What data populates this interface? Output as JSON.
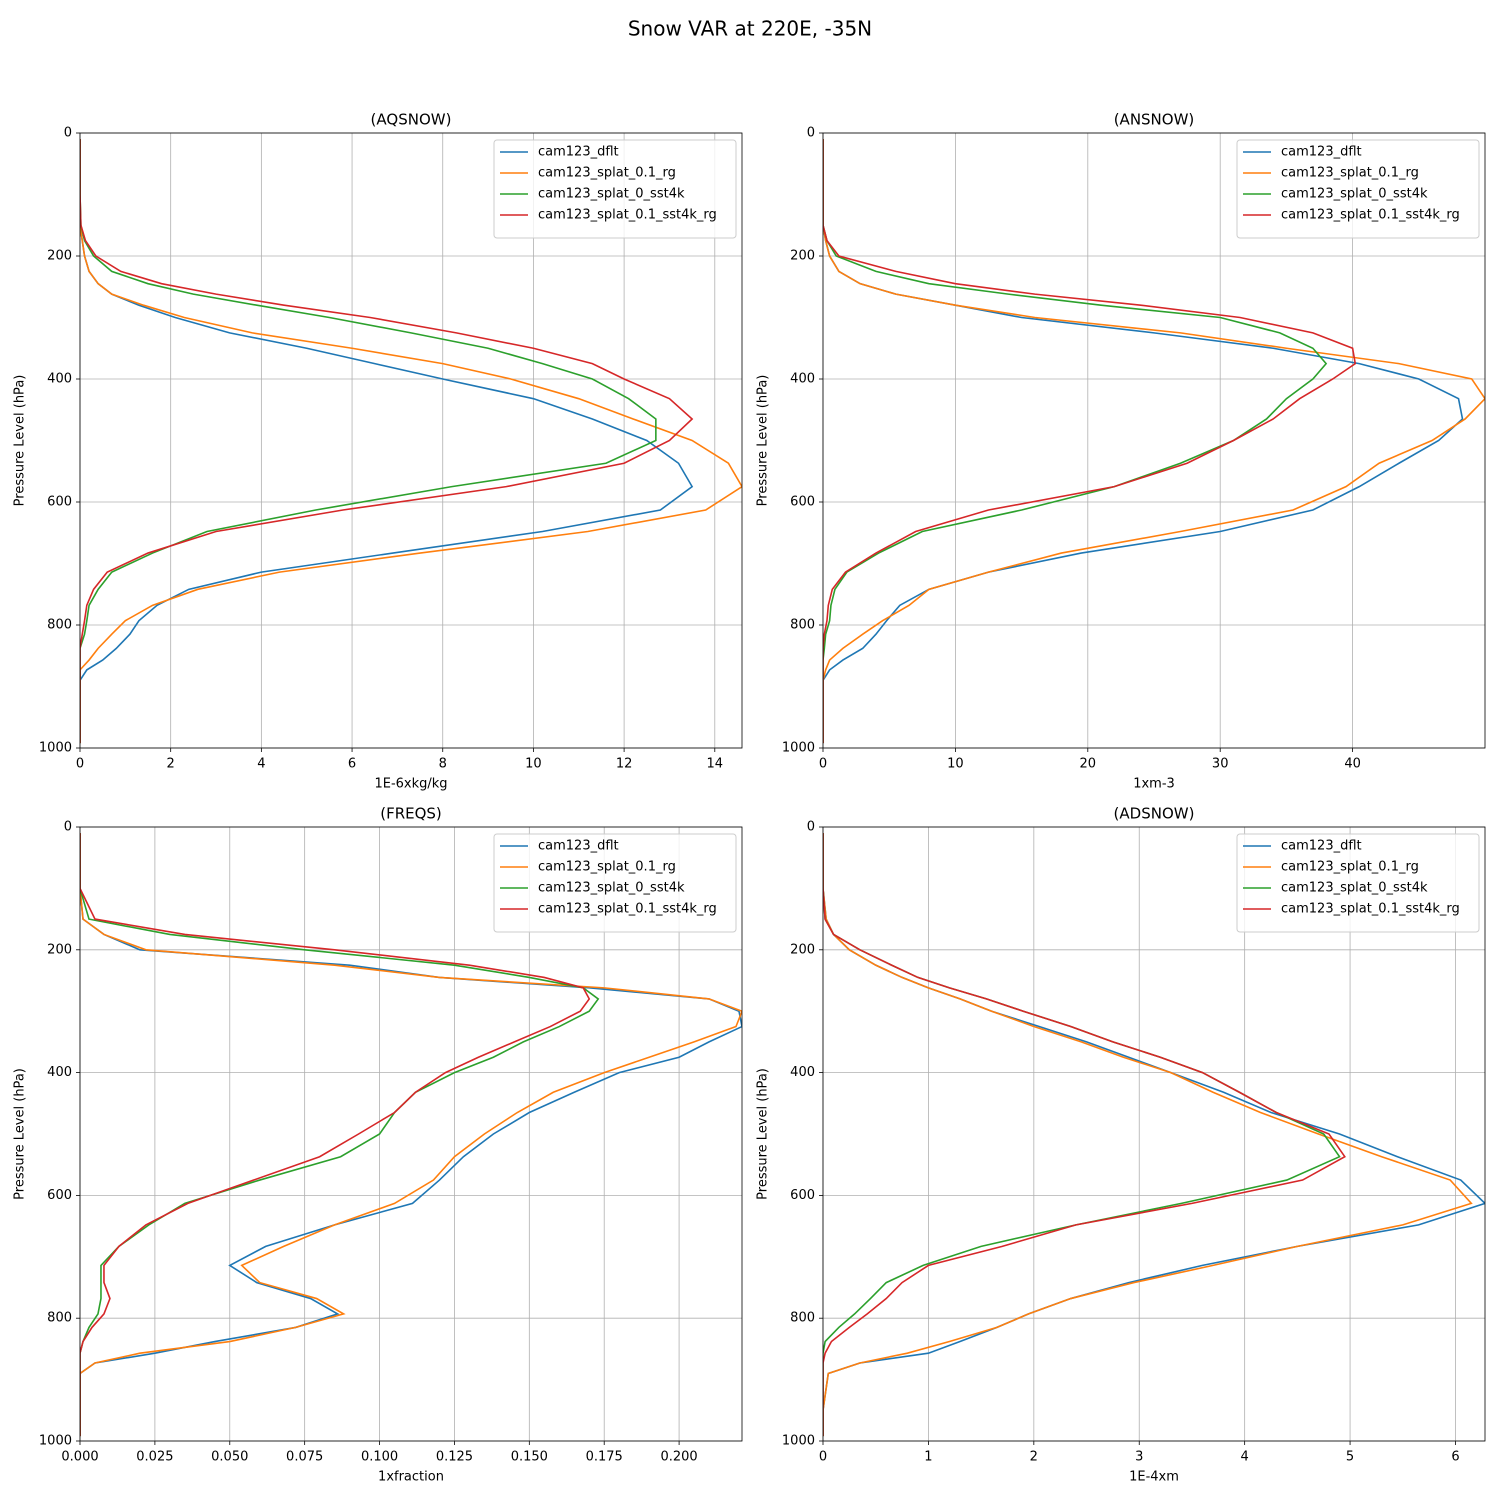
{
  "title": "Snow VAR at 220E, -35N",
  "chart_data": [
    {
      "type": "line",
      "title": "(AQSNOW)",
      "xlabel": "1E-6xkg/kg",
      "ylabel": "Pressure Level (hPa)",
      "y": [
        10,
        100,
        150,
        175,
        200,
        225,
        245,
        262,
        280,
        300,
        325,
        350,
        375,
        400,
        432,
        465,
        500,
        537,
        575,
        613,
        648,
        683,
        714,
        742,
        768,
        793,
        815,
        838,
        857,
        873,
        890,
        950,
        992
      ],
      "series": [
        {
          "name": "cam123_dflt",
          "color": "#1f77b4",
          "values": [
            0,
            0,
            0,
            0.05,
            0.1,
            0.2,
            0.4,
            0.7,
            1.3,
            2.1,
            3.3,
            5,
            6.5,
            8,
            10,
            11.3,
            12.5,
            13.2,
            13.5,
            12.8,
            10.2,
            6.9,
            4,
            2.4,
            1.7,
            1.3,
            1.1,
            0.8,
            0.5,
            0.15,
            0,
            0,
            0
          ]
        },
        {
          "name": "cam123_splat_0.1_rg",
          "color": "#ff7f0e",
          "values": [
            0,
            0,
            0,
            0.05,
            0.1,
            0.2,
            0.4,
            0.7,
            1.4,
            2.3,
            3.8,
            6,
            8,
            9.5,
            11,
            12.2,
            13.5,
            14.3,
            14.6,
            13.8,
            11.2,
            7.5,
            4.4,
            2.6,
            1.6,
            1,
            0.7,
            0.4,
            0.2,
            0,
            0,
            0,
            0
          ]
        },
        {
          "name": "cam123_splat_0_sst4k",
          "color": "#2ca02c",
          "values": [
            0,
            0,
            0.02,
            0.1,
            0.3,
            0.7,
            1.5,
            2.5,
            3.9,
            5.5,
            7.3,
            9,
            10.2,
            11.3,
            12.1,
            12.7,
            12.7,
            11.6,
            8.2,
            5.2,
            2.8,
            1.6,
            0.7,
            0.4,
            0.2,
            0.15,
            0.1,
            0,
            0,
            0,
            0,
            0,
            0
          ]
        },
        {
          "name": "cam123_splat_0.1_sst4k_rg",
          "color": "#d62728",
          "values": [
            0,
            0,
            0.02,
            0.12,
            0.35,
            0.9,
            1.8,
            3,
            4.5,
            6.4,
            8.3,
            10,
            11.3,
            12,
            13,
            13.5,
            13,
            12,
            9.4,
            5.8,
            3,
            1.5,
            0.6,
            0.3,
            0.15,
            0.1,
            0.05,
            0,
            0,
            0,
            0,
            0,
            0
          ]
        }
      ],
      "xlim": [
        0,
        14.6
      ],
      "xticks": [
        0,
        2,
        4,
        6,
        8,
        10,
        12,
        14
      ],
      "ylim": [
        1000,
        0
      ],
      "yticks": [
        0,
        200,
        400,
        600,
        800,
        1000
      ],
      "grid": true,
      "legend": "upper right"
    },
    {
      "type": "line",
      "title": "(ANSNOW)",
      "xlabel": "1xm-3",
      "ylabel": "Pressure Level (hPa)",
      "y": [
        10,
        100,
        150,
        175,
        200,
        225,
        245,
        262,
        280,
        300,
        325,
        350,
        375,
        400,
        432,
        465,
        500,
        537,
        575,
        613,
        648,
        683,
        714,
        742,
        768,
        793,
        815,
        838,
        857,
        873,
        890,
        950,
        992
      ],
      "series": [
        {
          "name": "cam123_dflt",
          "color": "#1f77b4",
          "values": [
            0,
            0,
            0,
            0.2,
            0.5,
            1.2,
            2.8,
            5.5,
            10,
            15,
            25,
            34,
            40.5,
            45,
            48,
            48.3,
            46.5,
            43.5,
            40.5,
            37,
            30,
            19.5,
            12.5,
            8,
            5.8,
            4.8,
            4,
            3,
            1.5,
            0.5,
            0,
            0,
            0
          ]
        },
        {
          "name": "cam123_splat_0.1_rg",
          "color": "#ff7f0e",
          "values": [
            0,
            0,
            0,
            0.2,
            0.5,
            1.2,
            2.8,
            5.5,
            10,
            16,
            27,
            35,
            43.5,
            49,
            50,
            48.5,
            46,
            42,
            39.5,
            35.5,
            27,
            18,
            12.5,
            8,
            6.5,
            4.5,
            3,
            1.5,
            0.5,
            0.2,
            0,
            0,
            0
          ]
        },
        {
          "name": "cam123_splat_0_sst4k",
          "color": "#2ca02c",
          "values": [
            0,
            0,
            0,
            0.3,
            1,
            4,
            8,
            14,
            21,
            30,
            34.5,
            37,
            38,
            37,
            35,
            33.5,
            31,
            27,
            22,
            15,
            7.5,
            4.2,
            1.8,
            0.9,
            0.6,
            0.5,
            0.2,
            0.1,
            0,
            0,
            0,
            0,
            0
          ]
        },
        {
          "name": "cam123_splat_0.1_sst4k_rg",
          "color": "#d62728",
          "values": [
            0,
            0,
            0,
            0.3,
            1.2,
            5.5,
            10,
            16,
            24,
            31.5,
            37,
            40,
            40.2,
            38.5,
            36,
            34,
            31,
            27.5,
            22,
            12.5,
            7,
            4,
            1.7,
            0.7,
            0.4,
            0.3,
            0.1,
            0,
            0,
            0,
            0,
            0,
            0
          ]
        }
      ],
      "xlim": [
        0,
        50
      ],
      "xticks": [
        0,
        10,
        20,
        30,
        40
      ],
      "ylim": [
        1000,
        0
      ],
      "yticks": [
        0,
        200,
        400,
        600,
        800,
        1000
      ],
      "grid": true,
      "legend": "upper right"
    },
    {
      "type": "line",
      "title": "(FREQS)",
      "xlabel": "1xfraction",
      "ylabel": "Pressure Level (hPa)",
      "y": [
        10,
        100,
        150,
        175,
        200,
        225,
        245,
        262,
        280,
        300,
        325,
        350,
        375,
        400,
        432,
        465,
        500,
        537,
        575,
        613,
        648,
        683,
        714,
        742,
        768,
        793,
        815,
        838,
        857,
        873,
        890,
        950,
        992
      ],
      "series": [
        {
          "name": "cam123_dflt",
          "color": "#1f77b4",
          "values": [
            0,
            0,
            0.001,
            0.008,
            0.02,
            0.09,
            0.12,
            0.17,
            0.21,
            0.22,
            0.221,
            0.21,
            0.2,
            0.18,
            0.165,
            0.15,
            0.138,
            0.128,
            0.12,
            0.111,
            0.085,
            0.062,
            0.05,
            0.059,
            0.077,
            0.086,
            0.072,
            0.045,
            0.025,
            0.005,
            0,
            0,
            0
          ]
        },
        {
          "name": "cam123_splat_0.1_rg",
          "color": "#ff7f0e",
          "values": [
            0,
            0,
            0.001,
            0.008,
            0.022,
            0.085,
            0.12,
            0.175,
            0.21,
            0.221,
            0.219,
            0.205,
            0.19,
            0.175,
            0.158,
            0.146,
            0.135,
            0.125,
            0.118,
            0.105,
            0.085,
            0.068,
            0.054,
            0.06,
            0.079,
            0.088,
            0.072,
            0.05,
            0.02,
            0.005,
            0,
            0,
            0
          ]
        },
        {
          "name": "cam123_splat_0_sst4k",
          "color": "#2ca02c",
          "values": [
            0,
            0,
            0.003,
            0.03,
            0.075,
            0.125,
            0.15,
            0.168,
            0.173,
            0.17,
            0.16,
            0.148,
            0.138,
            0.125,
            0.112,
            0.105,
            0.1,
            0.087,
            0.06,
            0.035,
            0.023,
            0.013,
            0.007,
            0.007,
            0.007,
            0.006,
            0.003,
            0.001,
            0,
            0,
            0,
            0,
            0
          ]
        },
        {
          "name": "cam123_splat_0.1_sst4k_rg",
          "color": "#d62728",
          "values": [
            0,
            0,
            0.005,
            0.035,
            0.085,
            0.13,
            0.155,
            0.168,
            0.17,
            0.167,
            0.157,
            0.145,
            0.133,
            0.122,
            0.112,
            0.105,
            0.093,
            0.08,
            0.058,
            0.036,
            0.022,
            0.013,
            0.008,
            0.008,
            0.01,
            0.008,
            0.004,
            0.001,
            0,
            0,
            0,
            0,
            0
          ]
        }
      ],
      "xlim": [
        0,
        0.221
      ],
      "xticks": [
        {
          "value": 0,
          "label": "0.000"
        },
        0.025,
        {
          "value": 0.05,
          "label": "0.050"
        },
        0.075,
        {
          "value": 0.1,
          "label": "0.100"
        },
        0.125,
        {
          "value": 0.15,
          "label": "0.150"
        },
        0.175,
        {
          "value": 0.2,
          "label": "0.200"
        }
      ],
      "ylim": [
        1000,
        0
      ],
      "yticks": [
        0,
        200,
        400,
        600,
        800,
        1000
      ],
      "grid": true,
      "legend": "upper right"
    },
    {
      "type": "line",
      "title": "(ADSNOW)",
      "xlabel": "1E-4xm",
      "ylabel": "Pressure Level (hPa)",
      "y": [
        10,
        100,
        150,
        175,
        200,
        225,
        245,
        262,
        280,
        300,
        325,
        350,
        375,
        400,
        432,
        465,
        500,
        537,
        575,
        613,
        648,
        683,
        714,
        742,
        768,
        793,
        815,
        838,
        857,
        873,
        890,
        950,
        992
      ],
      "series": [
        {
          "name": "cam123_dflt",
          "color": "#1f77b4",
          "values": [
            0,
            0,
            0.03,
            0.1,
            0.25,
            0.5,
            0.75,
            1,
            1.3,
            1.6,
            2.05,
            2.5,
            2.9,
            3.3,
            3.8,
            4.25,
            4.9,
            5.45,
            6.05,
            6.28,
            5.65,
            4.5,
            3.6,
            2.9,
            2.35,
            1.95,
            1.65,
            1.3,
            1,
            0.35,
            0.05,
            0,
            0
          ]
        },
        {
          "name": "cam123_splat_0.1_rg",
          "color": "#ff7f0e",
          "values": [
            0,
            0,
            0.03,
            0.1,
            0.25,
            0.5,
            0.75,
            1,
            1.3,
            1.6,
            2,
            2.45,
            2.85,
            3.3,
            3.7,
            4.15,
            4.7,
            5.3,
            5.95,
            6.15,
            5.5,
            4.5,
            3.7,
            2.95,
            2.35,
            1.95,
            1.65,
            1.2,
            0.8,
            0.35,
            0.05,
            0,
            0
          ]
        },
        {
          "name": "cam123_splat_0_sst4k",
          "color": "#2ca02c",
          "values": [
            0,
            0,
            0.02,
            0.1,
            0.35,
            0.65,
            0.9,
            1.2,
            1.55,
            1.9,
            2.35,
            2.75,
            3.2,
            3.6,
            3.95,
            4.3,
            4.75,
            4.9,
            4.4,
            3.4,
            2.4,
            1.5,
            0.95,
            0.6,
            0.45,
            0.3,
            0.15,
            0.02,
            0,
            0,
            0,
            0,
            0
          ]
        },
        {
          "name": "cam123_splat_0.1_sst4k_rg",
          "color": "#d62728",
          "values": [
            0,
            0,
            0.02,
            0.1,
            0.35,
            0.65,
            0.9,
            1.2,
            1.55,
            1.9,
            2.35,
            2.75,
            3.2,
            3.6,
            3.95,
            4.3,
            4.8,
            4.95,
            4.55,
            3.5,
            2.4,
            1.7,
            1,
            0.75,
            0.6,
            0.42,
            0.25,
            0.08,
            0.02,
            0,
            0,
            0,
            0
          ]
        }
      ],
      "xlim": [
        0,
        6.28
      ],
      "xticks": [
        0,
        1,
        2,
        3,
        4,
        5,
        6
      ],
      "ylim": [
        1000,
        0
      ],
      "yticks": [
        0,
        200,
        400,
        600,
        800,
        1000
      ],
      "grid": true,
      "legend": "upper right"
    }
  ]
}
